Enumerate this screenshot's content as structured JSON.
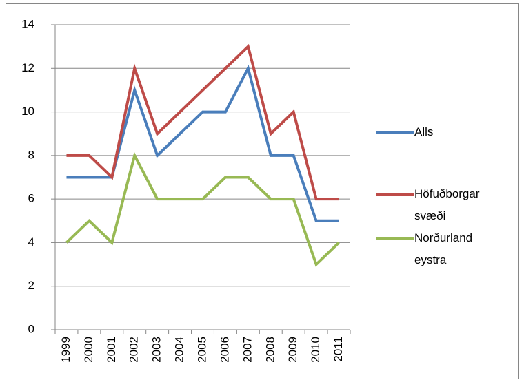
{
  "chart_data": {
    "type": "line",
    "categories": [
      "1999",
      "2000",
      "2001",
      "2002",
      "2003",
      "2004",
      "2005",
      "2006",
      "2007",
      "2008",
      "2009",
      "2010",
      "2011"
    ],
    "series": [
      {
        "name": "Alls",
        "color": "#4a7ebb",
        "values": [
          7,
          7,
          7,
          11,
          8,
          9,
          10,
          10,
          12,
          8,
          8,
          5,
          5
        ]
      },
      {
        "name": "Höfuðborgar svæði",
        "color": "#be4b48",
        "values": [
          8,
          8,
          7,
          12,
          9,
          10,
          11,
          12,
          13,
          9,
          10,
          6,
          6
        ]
      },
      {
        "name": "Norðurland eystra",
        "color": "#98b954",
        "values": [
          4,
          5,
          4,
          8,
          6,
          6,
          6,
          7,
          7,
          6,
          6,
          3,
          4
        ]
      }
    ],
    "ylim": [
      0,
      14
    ],
    "yticks": [
      0,
      2,
      4,
      6,
      8,
      10,
      12,
      14
    ],
    "grid": true,
    "legend": "right"
  }
}
